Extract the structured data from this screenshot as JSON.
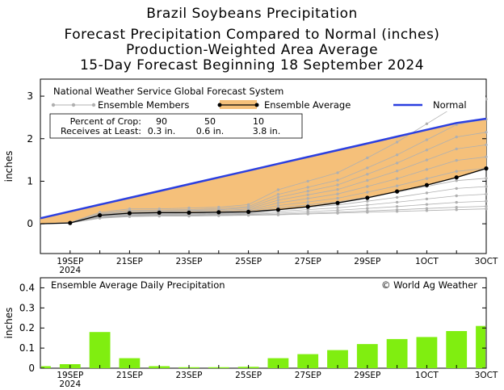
{
  "header": {
    "title": "Brazil Soybeans Precipitation",
    "line2": "Forecast Precipitation Compared to Normal (inches)",
    "line3": "Production-Weighted Area Average",
    "line4": "15-Day Forecast Beginning 18 September 2024"
  },
  "legend": {
    "system": "National Weather Service Global Forecast System",
    "members_label": "Ensemble Members",
    "average_label": "Ensemble Average",
    "normal_label": "Normal",
    "percent_label": "Percent of Crop:",
    "receives_label": "Receives at Least:",
    "percent_values": [
      "90",
      "50",
      "10"
    ],
    "receive_values": [
      "0.3 in.",
      "0.6 in.",
      "3.8 in."
    ]
  },
  "colors": {
    "normal": "#2b3fe0",
    "fill": "#f5c07a",
    "average": "#000000",
    "members": "#b0b0b0",
    "bar": "#80ee10"
  },
  "copyright": "© World Ag Weather",
  "chart_data": [
    {
      "type": "line",
      "title": "Brazil Soybeans Precipitation",
      "ylabel": "inches",
      "ylim": [
        -0.7,
        3.4
      ],
      "yticks": [
        "0",
        "1",
        "2",
        "3"
      ],
      "x": [
        0,
        1,
        2,
        3,
        4,
        5,
        6,
        7,
        8,
        9,
        10,
        11,
        12,
        13,
        14,
        15
      ],
      "x_tick_labels": [
        {
          "x": 1,
          "label": "19SEP",
          "sub": "2024"
        },
        {
          "x": 3,
          "label": "21SEP",
          "sub": ""
        },
        {
          "x": 5,
          "label": "23SEP",
          "sub": ""
        },
        {
          "x": 7,
          "label": "25SEP",
          "sub": ""
        },
        {
          "x": 9,
          "label": "27SEP",
          "sub": ""
        },
        {
          "x": 11,
          "label": "29SEP",
          "sub": ""
        },
        {
          "x": 13,
          "label": "1OCT",
          "sub": ""
        },
        {
          "x": 15,
          "label": "3OCT",
          "sub": ""
        }
      ],
      "series": [
        {
          "name": "Normal",
          "values": [
            0.13,
            0.29,
            0.45,
            0.61,
            0.77,
            0.93,
            1.09,
            1.25,
            1.41,
            1.57,
            1.73,
            1.89,
            2.05,
            2.21,
            2.37,
            2.47
          ]
        },
        {
          "name": "Ensemble Average",
          "values": [
            0.0,
            0.02,
            0.2,
            0.25,
            0.26,
            0.26,
            0.27,
            0.28,
            0.33,
            0.4,
            0.49,
            0.61,
            0.76,
            0.91,
            1.09,
            1.3
          ]
        }
      ],
      "members_range": {
        "min": [
          0.0,
          0.02,
          0.13,
          0.17,
          0.18,
          0.18,
          0.19,
          0.2,
          0.21,
          0.23,
          0.25,
          0.27,
          0.29,
          0.31,
          0.33,
          0.35
        ],
        "max": [
          0.0,
          0.03,
          0.27,
          0.35,
          0.35,
          0.37,
          0.39,
          0.45,
          0.8,
          1.0,
          1.2,
          1.55,
          1.92,
          2.35,
          2.78,
          2.93
        ]
      }
    },
    {
      "type": "bar",
      "title": "Ensemble Average Daily Precipitation",
      "ylabel": "inches",
      "ylim": [
        0,
        0.45
      ],
      "yticks": [
        "0",
        "0.1",
        "0.2",
        "0.3",
        "0.4"
      ],
      "x": [
        0,
        1,
        2,
        3,
        4,
        5,
        6,
        7,
        8,
        9,
        10,
        11,
        12,
        13,
        14,
        15
      ],
      "values": [
        0.01,
        0.02,
        0.18,
        0.05,
        0.01,
        0.005,
        0.005,
        0.007,
        0.05,
        0.07,
        0.09,
        0.12,
        0.145,
        0.155,
        0.185,
        0.21
      ]
    }
  ]
}
